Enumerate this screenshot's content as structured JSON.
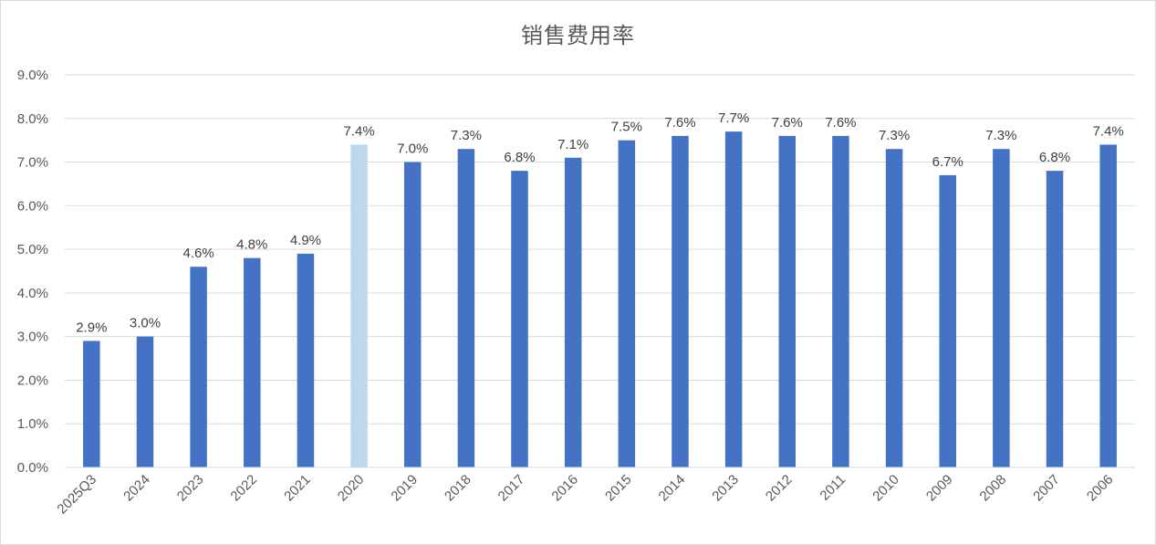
{
  "chart_data": {
    "type": "bar",
    "title": "销售费用率",
    "categories": [
      "2025Q3",
      "2024",
      "2023",
      "2022",
      "2021",
      "2020",
      "2019",
      "2018",
      "2017",
      "2016",
      "2015",
      "2014",
      "2013",
      "2012",
      "2011",
      "2010",
      "2009",
      "2008",
      "2007",
      "2006"
    ],
    "series": [
      {
        "values": [
          2.9,
          3.0,
          4.6,
          4.8,
          4.9,
          7.4,
          7.0,
          7.3,
          6.8,
          7.1,
          7.5,
          7.6,
          7.7,
          7.6,
          7.6,
          7.3,
          6.7,
          7.3,
          6.8,
          7.4
        ],
        "data_labels": [
          "2.9%",
          "3.0%",
          "4.6%",
          "4.8%",
          "4.9%",
          "7.4%",
          "7.0%",
          "7.3%",
          "6.8%",
          "7.1%",
          "7.5%",
          "7.6%",
          "7.7%",
          "7.6%",
          "7.6%",
          "7.3%",
          "6.7%",
          "7.3%",
          "6.8%",
          "7.4%"
        ]
      }
    ],
    "y_tick_labels": [
      "0.0%",
      "1.0%",
      "2.0%",
      "3.0%",
      "4.0%",
      "5.0%",
      "6.0%",
      "7.0%",
      "8.0%",
      "9.0%"
    ],
    "ylim": [
      0,
      9
    ],
    "y_unit": "%",
    "grid": true,
    "legend": "none",
    "highlight_category": "2020",
    "colors": {
      "bar": "#4472c4",
      "highlight": "#bdd7ee",
      "grid": "#d9d9d9"
    }
  }
}
